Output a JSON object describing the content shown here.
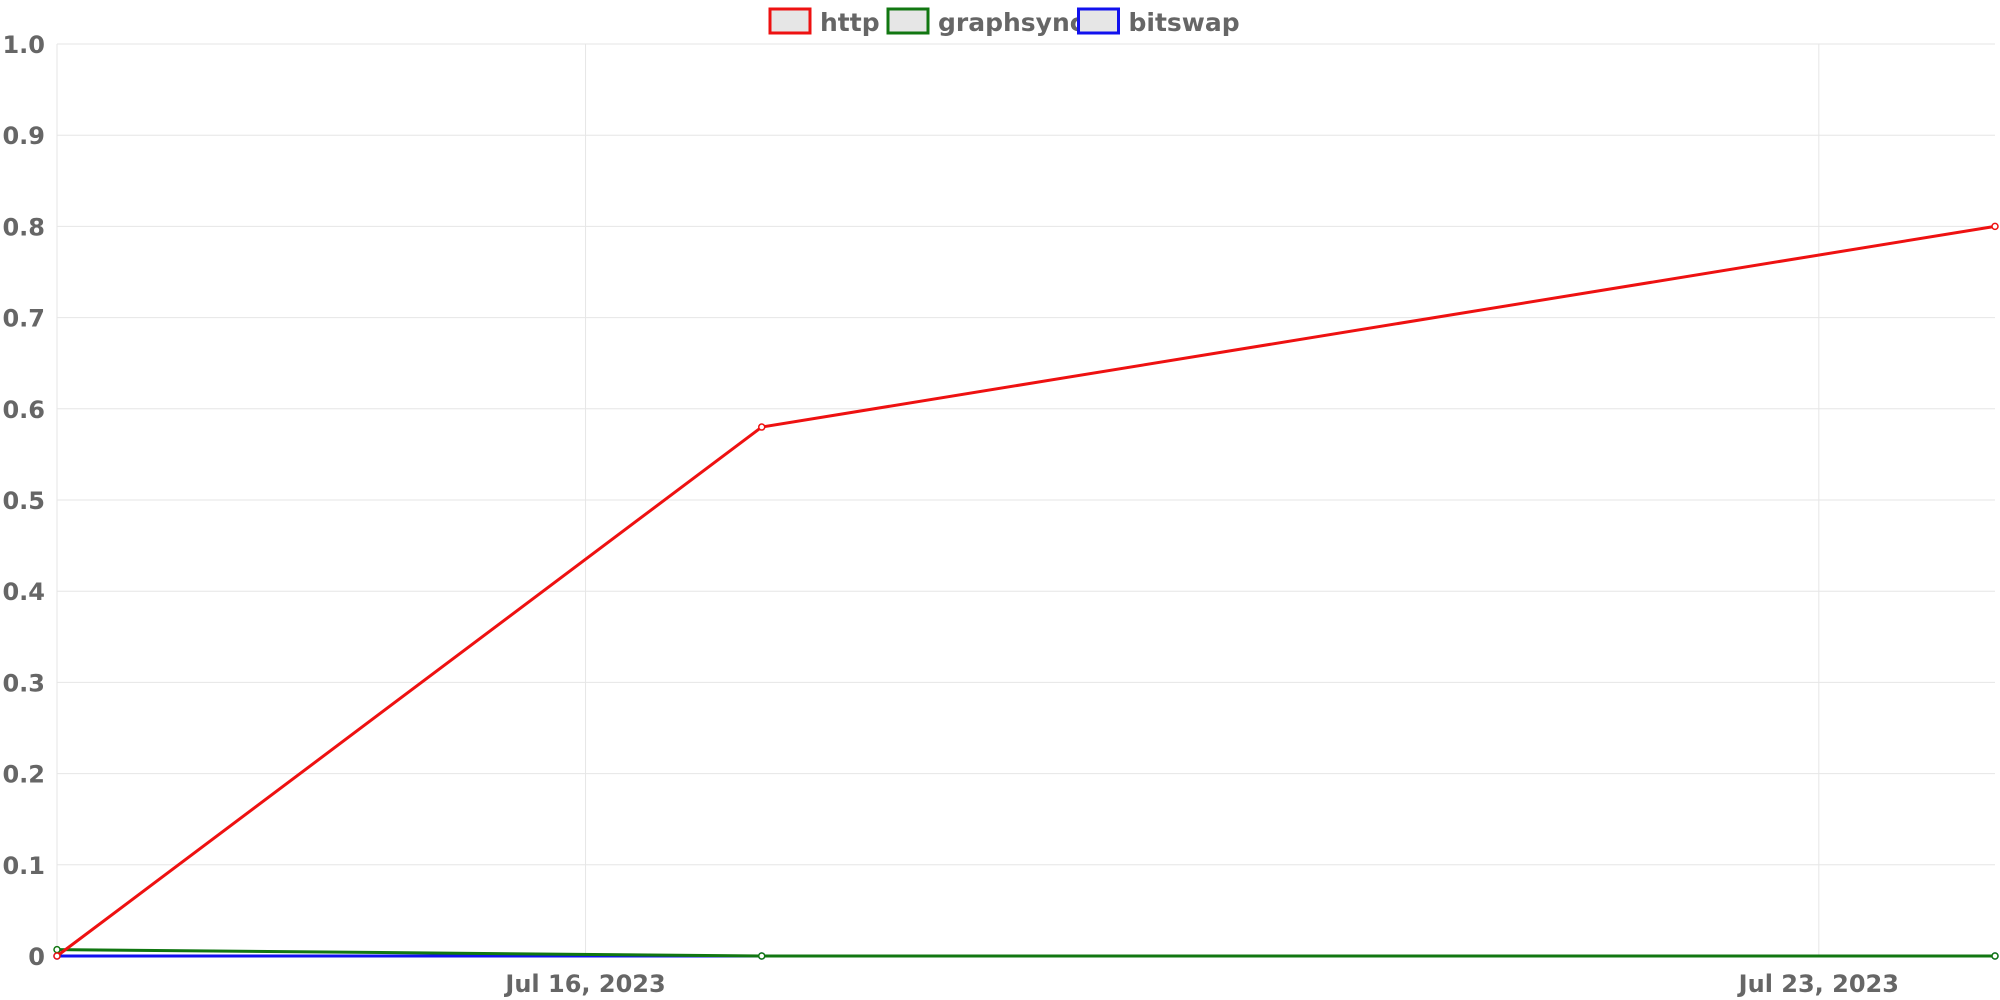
{
  "chart_data": {
    "type": "line",
    "title": "",
    "xlabel": "",
    "ylabel": "",
    "x": [
      "2023-07-13",
      "2023-07-17",
      "2023-07-24"
    ],
    "x_ticks": [
      {
        "date": "2023-07-16",
        "label": "Jul 16, 2023"
      },
      {
        "date": "2023-07-23",
        "label": "Jul 23, 2023"
      }
    ],
    "xlim": [
      "2023-07-13",
      "2023-07-24"
    ],
    "ylim": [
      0,
      1
    ],
    "y_ticks": [
      "0",
      "0.1",
      "0.2",
      "0.3",
      "0.4",
      "0.5",
      "0.6",
      "0.7",
      "0.8",
      "0.9",
      "1.0"
    ],
    "grid": true,
    "legend_position": "top-center",
    "series": [
      {
        "name": "http",
        "color": "#ee1111",
        "values": [
          0,
          0.58,
          0.8
        ]
      },
      {
        "name": "graphsync",
        "color": "#117711",
        "values": [
          0.007,
          0,
          0
        ]
      },
      {
        "name": "bitswap",
        "color": "#1111ee",
        "values": [
          0,
          0,
          0
        ]
      }
    ]
  }
}
